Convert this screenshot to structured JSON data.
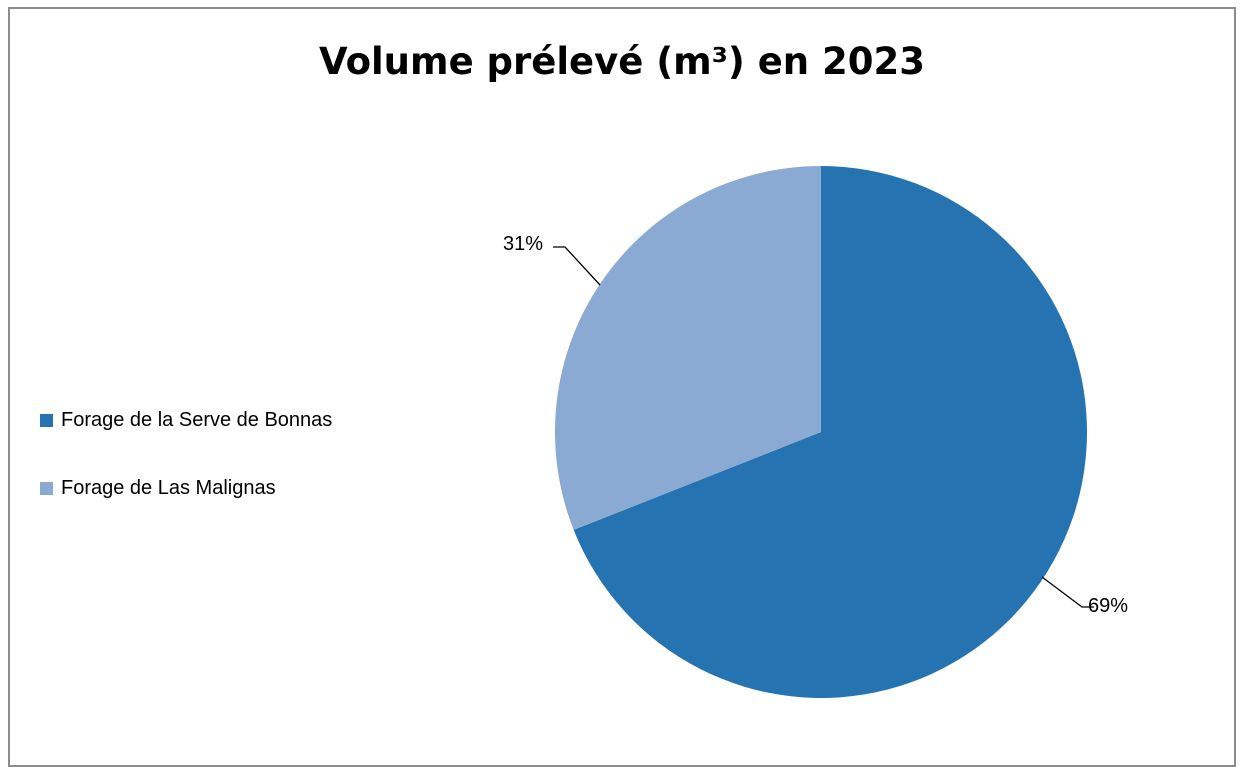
{
  "chart_data": {
    "type": "pie",
    "title": "Volume prélevé (m³) en 2023",
    "legend_position": "left",
    "slices": [
      {
        "label": "Forage de la Serve de Bonnas",
        "value": 69,
        "data_label": "69%",
        "color": "#2573b0"
      },
      {
        "label": "Forage de Las Malignas",
        "value": 31,
        "data_label": "31%",
        "color": "#8aaad3"
      }
    ]
  }
}
